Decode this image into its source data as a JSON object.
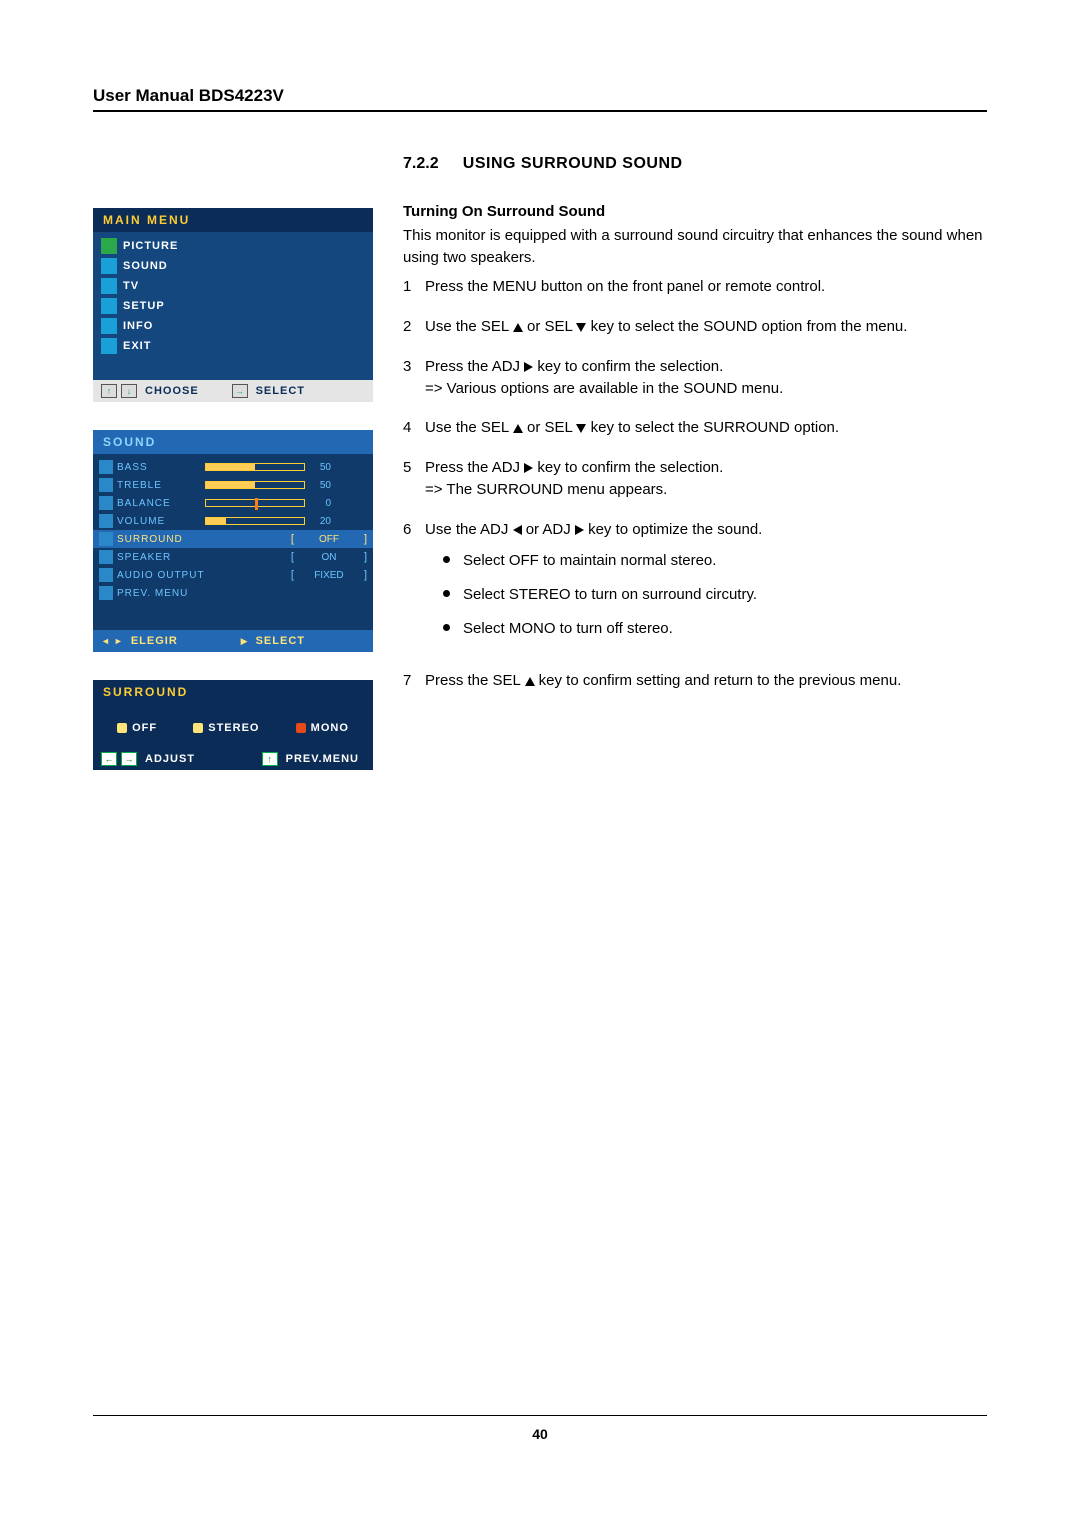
{
  "header": {
    "title": "User Manual BDS4223V"
  },
  "page_number": "40",
  "main_menu": {
    "title": "MAIN  MENU",
    "items": [
      {
        "label": "PICTURE",
        "icon_bg": "#2aa84a"
      },
      {
        "label": "SOUND",
        "icon_bg": "#1aa0d8"
      },
      {
        "label": "TV",
        "icon_bg": "#1aa0d8"
      },
      {
        "label": "SETUP",
        "icon_bg": "#1aa0d8"
      },
      {
        "label": "INFO",
        "icon_bg": "#1aa0d8"
      },
      {
        "label": "EXIT",
        "icon_bg": "#1aa0d8"
      }
    ],
    "footer": {
      "choose": "CHOOSE",
      "select": "SELECT"
    }
  },
  "sound_menu": {
    "title": "SOUND",
    "rows": [
      {
        "label": "BASS",
        "type": "slider",
        "value": "50",
        "fill_pct": 50
      },
      {
        "label": "TREBLE",
        "type": "slider",
        "value": "50",
        "fill_pct": 50
      },
      {
        "label": "BALANCE",
        "type": "slider_marker",
        "value": "0",
        "marker_pct": 50
      },
      {
        "label": "VOLUME",
        "type": "slider",
        "value": "20",
        "fill_pct": 20
      },
      {
        "label": "SURROUND",
        "type": "option",
        "option": "OFF",
        "hl": true
      },
      {
        "label": "SPEAKER",
        "type": "option",
        "option": "ON"
      },
      {
        "label": "AUDIO OUTPUT",
        "type": "option",
        "option": "FIXED"
      },
      {
        "label": "PREV. MENU",
        "type": "none"
      }
    ],
    "footer": {
      "left": "ELEGIR",
      "right": "SELECT"
    }
  },
  "surround_menu": {
    "title": "SURROUND",
    "options": [
      {
        "label": "OFF",
        "dot_color": "#ffe27a"
      },
      {
        "label": "STEREO",
        "dot_color": "#ffe27a"
      },
      {
        "label": "MONO",
        "dot_color": "#e44a1a"
      }
    ],
    "footer": {
      "adjust": "ADJUST",
      "prev": "PREV.MENU"
    }
  },
  "section": {
    "number": "7.2.2",
    "title": "USING SURROUND SOUND",
    "subtitle": "Turning On Surround Sound",
    "intro": "This monitor is equipped with a surround sound circuitry that enhances the sound when using two speakers.",
    "steps": [
      {
        "n": "1",
        "text": "Press the MENU button on the front panel or remote control."
      },
      {
        "n": "2",
        "pre": "Use the SEL ",
        "mid": " or SEL ",
        "post": " key to select the SOUND option from the menu.",
        "arrows": [
          "up",
          "down"
        ]
      },
      {
        "n": "3",
        "pre": "Press the ADJ ",
        "post": " key to confirm the selection.",
        "arrows": [
          "right"
        ],
        "sub": "=> Various options are available in the SOUND menu."
      },
      {
        "n": "4",
        "pre": "Use the SEL ",
        "mid": " or SEL ",
        "post": " key to select the SURROUND option.",
        "arrows": [
          "up",
          "down"
        ]
      },
      {
        "n": "5",
        "pre": "Press the ADJ ",
        "post": " key to confirm the selection.",
        "arrows": [
          "right"
        ],
        "sub": "=> The SURROUND menu appears."
      },
      {
        "n": "6",
        "pre": "Use the ADJ ",
        "mid": " or ADJ ",
        "post": "  key to optimize the sound.",
        "arrows": [
          "left",
          "right"
        ],
        "bullets": [
          "Select OFF to maintain normal stereo.",
          "Select STEREO to turn on surround circutry.",
          "Select MONO to turn off stereo."
        ]
      },
      {
        "n": "7",
        "pre": "Press the SEL ",
        "post": " key to confirm setting and return to the previous menu.",
        "arrows": [
          "up"
        ]
      }
    ]
  }
}
